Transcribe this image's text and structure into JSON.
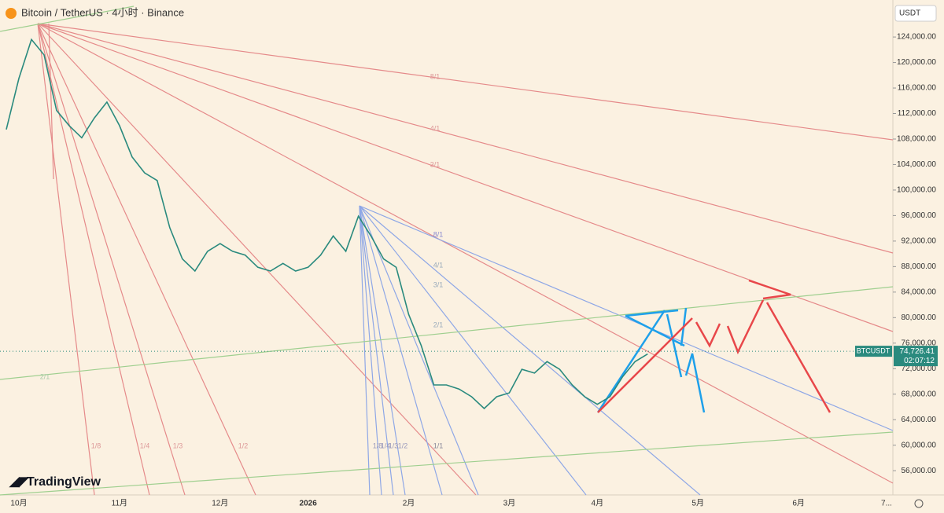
{
  "chart_data": {
    "type": "line",
    "title": "Bitcoin / TetherUS · 4小时 · Binance",
    "currency_button": "USDT",
    "logo": "TradingView",
    "symbol": "BTCUSDT",
    "color": "#2a8a7e",
    "categories": [
      null,
      "10月",
      null,
      null,
      null,
      null,
      null,
      null,
      null,
      "11月",
      null,
      null,
      null,
      null,
      null,
      null,
      null,
      "12月",
      null,
      null,
      null,
      null,
      null,
      null,
      "2026",
      null,
      null,
      null,
      null,
      null,
      null,
      null,
      "2月",
      null,
      null,
      null,
      null,
      null,
      null,
      null,
      "3月",
      null,
      null,
      null,
      null,
      null,
      null,
      "4月",
      null,
      null,
      null,
      null,
      null,
      null,
      null,
      "5月",
      null,
      null,
      null,
      null,
      null,
      null,
      null,
      "6月",
      null,
      null,
      null,
      null,
      null,
      null,
      "7..."
    ],
    "values": [
      109500,
      117500,
      123600,
      121200,
      112500,
      110100,
      108200,
      111300,
      113800,
      110100,
      105200,
      102700,
      101500,
      94100,
      89200,
      87300,
      90400,
      91600,
      90400,
      89800,
      87900,
      87300,
      88500,
      87300,
      87900,
      89800,
      92800,
      90400,
      95900,
      92800,
      89200,
      87900,
      80500,
      75600,
      69450,
      69450,
      68800,
      67600,
      65750,
      67600,
      68200,
      71900,
      71300,
      73100,
      71900,
      69450,
      67600,
      66400,
      67600,
      70700,
      73100,
      74300,
      null,
      null,
      null,
      null,
      null,
      null,
      null,
      null,
      null,
      null,
      null,
      null,
      null,
      null,
      null,
      null,
      null,
      null,
      null
    ],
    "ylim": [
      52200,
      129800
    ],
    "yticks": [
      {
        "value": 56000,
        "label": "56,000.00"
      },
      {
        "value": 60000,
        "label": "60,000.00"
      },
      {
        "value": 64000,
        "label": "64,000.00"
      },
      {
        "value": 68000,
        "label": "68,000.00"
      },
      {
        "value": 72000,
        "label": "72,000.00"
      },
      {
        "value": 76000,
        "label": "76,000.00"
      },
      {
        "value": 80000,
        "label": "80,000.00"
      },
      {
        "value": 84000,
        "label": "84,000.00"
      },
      {
        "value": 88000,
        "label": "88,000.00"
      },
      {
        "value": 92000,
        "label": "92,000.00"
      },
      {
        "value": 96000,
        "label": "96,000.00"
      },
      {
        "value": 100000,
        "label": "100,000.00"
      },
      {
        "value": 104000,
        "label": "104,000.00"
      },
      {
        "value": 108000,
        "label": "108,000.00"
      },
      {
        "value": 112000,
        "label": "112,000.00"
      },
      {
        "value": 116000,
        "label": "116,000.00"
      },
      {
        "value": 120000,
        "label": "120,000.00"
      },
      {
        "value": 124000,
        "label": "124,000.00"
      }
    ],
    "last_price": {
      "value": 74726.41,
      "label": "74,726.41"
    },
    "countdown": "02:07:12",
    "annotations": [
      "8/1",
      "4/1",
      "3/1",
      "8/1",
      "4/1",
      "3/1",
      "2/1",
      "1/1",
      "1/8",
      "1/4",
      "1/3",
      "1/2",
      "1/8",
      "1/4",
      "1/3",
      "1/2",
      "2/1"
    ]
  }
}
